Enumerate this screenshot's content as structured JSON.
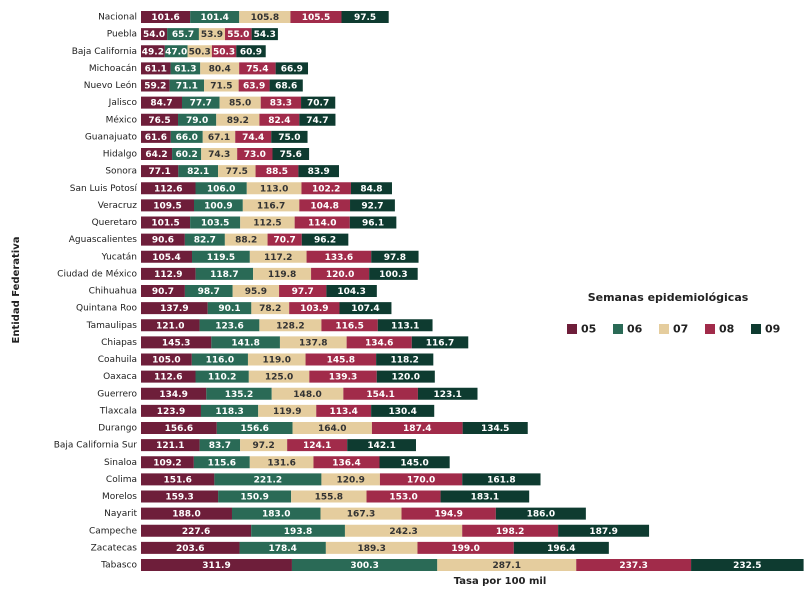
{
  "chart_data": {
    "type": "stacked-bar-horizontal",
    "x_label": "Tasa por 100 mil",
    "y_label": "Entidad Federativa",
    "legend_title": "Semanas epidemiológicas",
    "legend": "right",
    "xlim": [
      0,
      1372
    ],
    "categories": [
      "Nacional",
      "Puebla",
      "Baja California",
      "Michoacán",
      "Nuevo León",
      "Jalisco",
      "México",
      "Guanajuato",
      "Hidalgo",
      "Sonora",
      "San Luis Potosí",
      "Veracruz",
      "Queretaro",
      "Aguascalientes",
      "Yucatán",
      "Ciudad de México",
      "Chihuahua",
      "Quintana Roo",
      "Tamaulipas",
      "Chiapas",
      "Coahuila",
      "Oaxaca",
      "Guerrero",
      "Tlaxcala",
      "Durango",
      "Baja California Sur",
      "Sinaloa",
      "Colima",
      "Morelos",
      "Nayarit",
      "Campeche",
      "Zacatecas",
      "Tabasco"
    ],
    "series": [
      {
        "name": "05",
        "color": "#6e1e3a",
        "values": [
          101.6,
          54,
          49.2,
          61.1,
          59.2,
          84.7,
          76.5,
          61.6,
          64.2,
          77.1,
          112.6,
          109.5,
          101.5,
          90.6,
          105.4,
          112.9,
          90.7,
          137.9,
          121,
          145.3,
          105,
          112.6,
          134.9,
          123.9,
          156.6,
          121.1,
          109.2,
          151.6,
          159.3,
          188,
          227.6,
          203.6,
          311.9
        ],
        "value_labels": [
          "101.6",
          "54.0",
          "49.2",
          "61.1",
          "59.2",
          "84.7",
          "76.5",
          "61.6",
          "64.2",
          "77.1",
          "112.6",
          "109.5",
          "101.5",
          "90.6",
          "105.4",
          "112.9",
          "90.7",
          "137.9",
          "121.0",
          "145.3",
          "105.0",
          "112.6",
          "134.9",
          "123.9",
          "156.6",
          "121.1",
          "109.2",
          "151.6",
          "159.3",
          "188.0",
          "227.6",
          "203.6",
          "311.9"
        ]
      },
      {
        "name": "06",
        "color": "#2a6a56",
        "values": [
          101.4,
          65.7,
          47,
          61.3,
          71.1,
          77.7,
          79,
          66,
          60.2,
          82.1,
          106,
          100.9,
          103.5,
          82.7,
          119.5,
          118.7,
          98.7,
          90.1,
          123.6,
          141.8,
          116,
          110.2,
          135.2,
          118.3,
          156.6,
          83.7,
          115.6,
          221.2,
          150.9,
          183,
          193.8,
          178.4,
          300.3
        ],
        "value_labels": [
          "101.4",
          "65.7",
          "47.0",
          "61.3",
          "71.1",
          "77.7",
          "79.0",
          "66.0",
          "60.2",
          "82.1",
          "106.0",
          "100.9",
          "103.5",
          "82.7",
          "119.5",
          "118.7",
          "98.7",
          "90.1",
          "123.6",
          "141.8",
          "116.0",
          "110.2",
          "135.2",
          "118.3",
          "156.6",
          "83.7",
          "115.6",
          "221.2",
          "150.9",
          "183.0",
          "193.8",
          "178.4",
          "300.3"
        ]
      },
      {
        "name": "07",
        "color": "#e5cd9e",
        "values": [
          105.8,
          53.9,
          50.3,
          80.4,
          71.5,
          85,
          89.2,
          67.1,
          74.3,
          77.5,
          113,
          116.7,
          112.5,
          88.2,
          117.2,
          119.8,
          95.9,
          78.2,
          128.2,
          137.8,
          119,
          125,
          148,
          119.9,
          164,
          97.2,
          131.6,
          120.9,
          155.8,
          167.3,
          242.3,
          189.3,
          287.1
        ],
        "value_labels": [
          "105.8",
          "53.9",
          "50.3",
          "80.4",
          "71.5",
          "85.0",
          "89.2",
          "67.1",
          "74.3",
          "77.5",
          "113.0",
          "116.7",
          "112.5",
          "88.2",
          "117.2",
          "119.8",
          "95.9",
          "78.2",
          "128.2",
          "137.8",
          "119.0",
          "125.0",
          "148.0",
          "119.9",
          "164.0",
          "97.2",
          "131.6",
          "120.9",
          "155.8",
          "167.3",
          "242.3",
          "189.3",
          "287.1"
        ]
      },
      {
        "name": "08",
        "color": "#a12b4a",
        "values": [
          105.5,
          55,
          50.3,
          75.4,
          63.9,
          83.3,
          82.4,
          74.4,
          73,
          88.5,
          102.2,
          104.8,
          114,
          70.7,
          133.6,
          120,
          97.7,
          103.9,
          116.5,
          134.6,
          145.8,
          139.3,
          154.1,
          113.4,
          187.4,
          124.1,
          136.4,
          170,
          153,
          194.9,
          198.2,
          199,
          237.3
        ],
        "value_labels": [
          "105.5",
          "55.0",
          "50.3",
          "75.4",
          "63.9",
          "83.3",
          "82.4",
          "74.4",
          "73.0",
          "88.5",
          "102.2",
          "104.8",
          "114.0",
          "70.7",
          "133.6",
          "120.0",
          "97.7",
          "103.9",
          "116.5",
          "134.6",
          "145.8",
          "139.3",
          "154.1",
          "113.4",
          "187.4",
          "124.1",
          "136.4",
          "170.0",
          "153.0",
          "194.9",
          "198.2",
          "199.0",
          "237.3"
        ]
      },
      {
        "name": "09",
        "color": "#0e3b30",
        "values": [
          97.5,
          54.3,
          60.9,
          66.9,
          68.6,
          70.7,
          74.7,
          75,
          75.6,
          83.9,
          84.8,
          92.7,
          96.1,
          96.2,
          97.8,
          100.3,
          104.3,
          107.4,
          113.1,
          116.7,
          118.2,
          120,
          123.1,
          130.4,
          134.5,
          142.1,
          145,
          161.8,
          183.1,
          186,
          187.9,
          196.4,
          232.5
        ],
        "value_labels": [
          "97.5",
          "54.3",
          "60.9",
          "66.9",
          "68.6",
          "70.7",
          "74.7",
          "75.0",
          "75.6",
          "83.9",
          "84.8",
          "92.7",
          "96.1",
          "96.2",
          "97.8",
          "100.3",
          "104.3",
          "107.4",
          "113.1",
          "116.7",
          "118.2",
          "120.0",
          "123.1",
          "130.4",
          "134.5",
          "142.1",
          "145.0",
          "161.8",
          "183.1",
          "186.0",
          "187.9",
          "196.4",
          "232.5"
        ]
      }
    ]
  }
}
